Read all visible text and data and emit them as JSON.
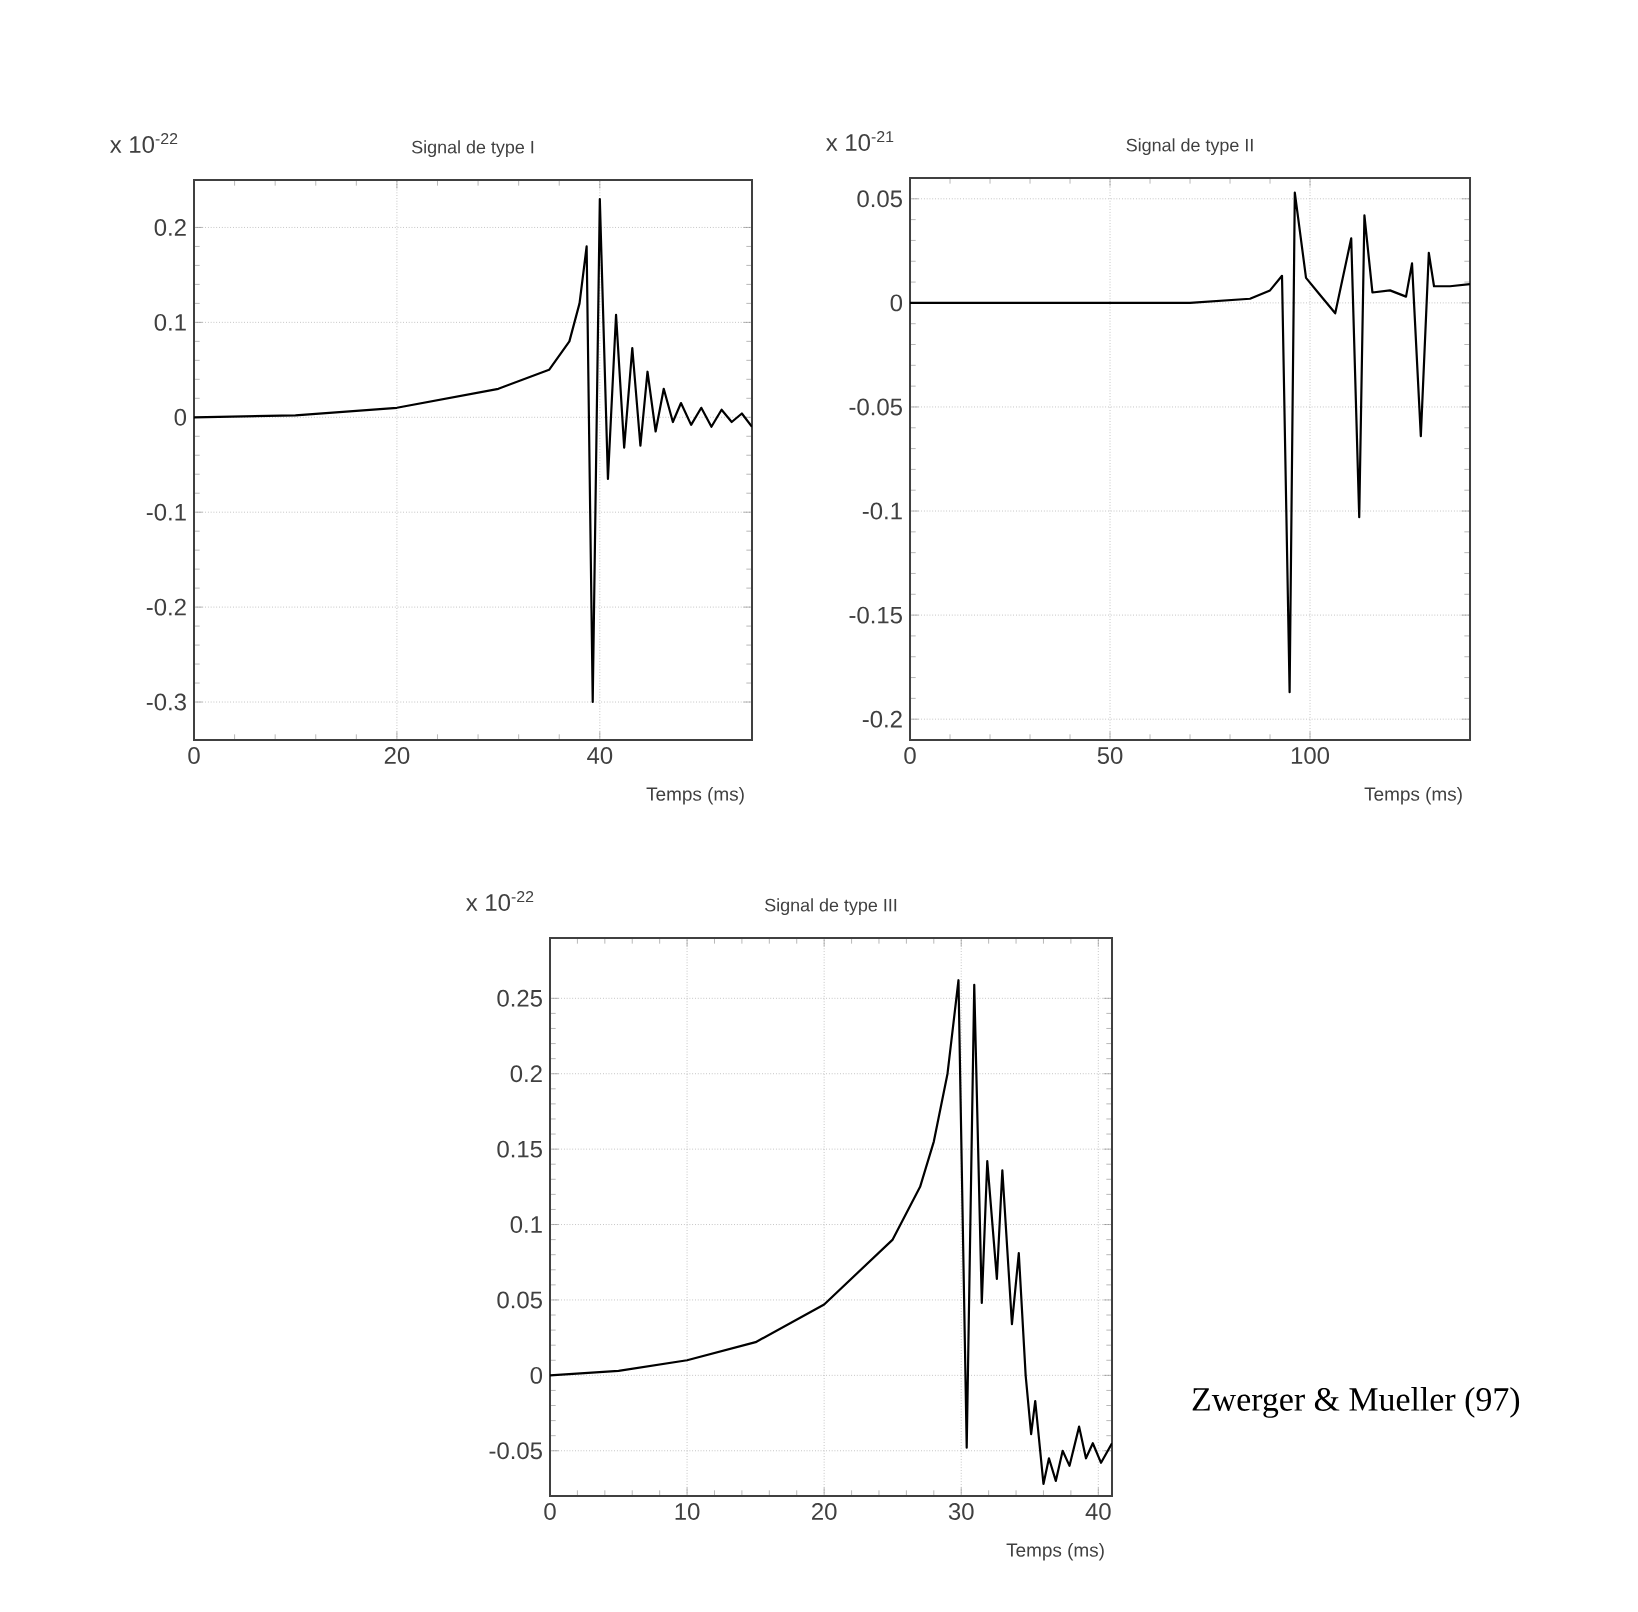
{
  "chart_data": [
    {
      "type": "line",
      "title": "Signal de type I",
      "xlabel": "Temps (ms)",
      "ylabel": "x 10$^{-22}$",
      "xlim": [
        0,
        55
      ],
      "ylim": [
        -0.34,
        0.25
      ],
      "xticks": [
        0,
        20,
        40
      ],
      "yticks": [
        -0.3,
        -0.2,
        -0.1,
        0,
        0.1,
        0.2
      ],
      "grid": true,
      "series": [
        {
          "color": "#000000",
          "x": [
            0,
            10,
            20,
            30,
            35,
            37,
            38,
            38.7,
            39.3,
            40.0,
            40.8,
            41.6,
            42.4,
            43.2,
            44.0,
            44.7,
            45.5,
            46.3,
            47.2,
            48.0,
            49.0,
            50.0,
            51.0,
            52.0,
            53.0,
            54.0,
            55.0
          ],
          "values": [
            0,
            0.002,
            0.01,
            0.03,
            0.05,
            0.08,
            0.12,
            0.18,
            -0.3,
            0.23,
            -0.065,
            0.108,
            -0.032,
            0.073,
            -0.03,
            0.048,
            -0.015,
            0.03,
            -0.005,
            0.015,
            -0.008,
            0.01,
            -0.01,
            0.008,
            -0.005,
            0.004,
            -0.01
          ]
        }
      ]
    },
    {
      "type": "line",
      "title": "Signal de type II",
      "xlabel": "Temps (ms)",
      "ylabel": "x 10$^{-21}$",
      "xlim": [
        0,
        140
      ],
      "ylim": [
        -0.21,
        0.06
      ],
      "xticks": [
        0,
        50,
        100
      ],
      "yticks": [
        -0.2,
        -0.15,
        -0.1,
        -0.05,
        0,
        0.05
      ],
      "grid": true,
      "series": [
        {
          "color": "#000000",
          "x": [
            0,
            70,
            85,
            90,
            93,
            94.9,
            96.2,
            99,
            102,
            106.3,
            110.3,
            112.3,
            113.6,
            115.6,
            120,
            124,
            125.5,
            127.7,
            129.7,
            131,
            135,
            140
          ],
          "values": [
            0,
            0,
            0.002,
            0.006,
            0.013,
            -0.187,
            0.053,
            0.012,
            0.005,
            -0.005,
            0.031,
            -0.103,
            0.042,
            0.005,
            0.006,
            0.003,
            0.019,
            -0.064,
            0.024,
            0.008,
            0.008,
            0.009
          ]
        }
      ]
    },
    {
      "type": "line",
      "title": "Signal de type III",
      "xlabel": "Temps (ms)",
      "ylabel": "x 10$^{-22}$",
      "xlim": [
        0,
        41
      ],
      "ylim": [
        -0.08,
        0.29
      ],
      "xticks": [
        0,
        10,
        20,
        30,
        40
      ],
      "yticks": [
        -0.05,
        0,
        0.05,
        0.1,
        0.15,
        0.2,
        0.25
      ],
      "grid": true,
      "annotations": [
        "Zwerger & Mueller (97)"
      ],
      "series": [
        {
          "color": "#000000",
          "x": [
            0,
            5,
            10,
            15,
            20,
            25,
            27,
            28,
            29,
            29.8,
            30.4,
            30.95,
            31.5,
            31.9,
            32.6,
            33.0,
            33.7,
            34.2,
            34.7,
            35.1,
            35.4,
            36.0,
            36.4,
            36.9,
            37.4,
            37.9,
            38.6,
            39.1,
            39.6,
            40.2,
            41
          ],
          "values": [
            0,
            0.003,
            0.01,
            0.022,
            0.047,
            0.09,
            0.125,
            0.155,
            0.2,
            0.262,
            -0.048,
            0.259,
            0.048,
            0.142,
            0.064,
            0.136,
            0.034,
            0.081,
            0,
            -0.039,
            -0.017,
            -0.072,
            -0.055,
            -0.07,
            -0.05,
            -0.06,
            -0.034,
            -0.055,
            -0.045,
            -0.058,
            -0.045
          ]
        }
      ]
    }
  ]
}
